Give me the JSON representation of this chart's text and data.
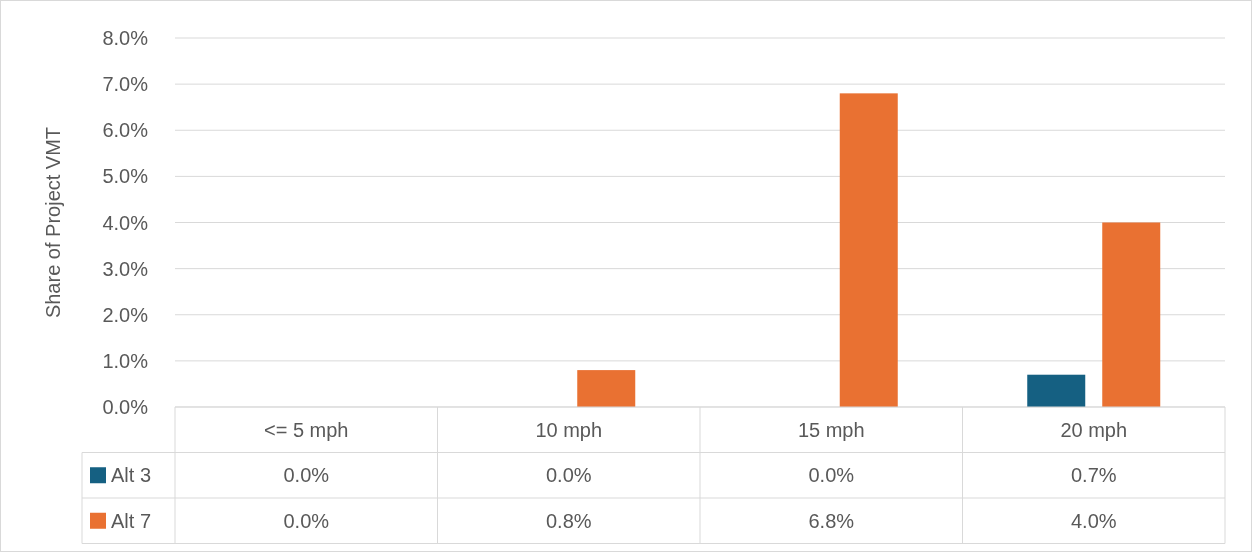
{
  "chart_data": {
    "type": "bar",
    "ylabel": "Share of Project VMT",
    "categories": [
      "<= 5 mph",
      "10 mph",
      "15 mph",
      "20 mph"
    ],
    "series": [
      {
        "name": "Alt 3",
        "color": "#156082",
        "values": [
          0.0,
          0.0,
          0.0,
          0.7
        ],
        "value_labels": [
          "0.0%",
          "0.0%",
          "0.0%",
          "0.7%"
        ]
      },
      {
        "name": "Alt 7",
        "color": "#e97132",
        "values": [
          0.0,
          0.8,
          6.8,
          4.0
        ],
        "value_labels": [
          "0.0%",
          "0.8%",
          "6.8%",
          "4.0%"
        ]
      }
    ],
    "ylim": [
      0,
      8
    ],
    "yticks": [
      {
        "value": 0,
        "label": "0.0%"
      },
      {
        "value": 1,
        "label": "1.0%"
      },
      {
        "value": 2,
        "label": "2.0%"
      },
      {
        "value": 3,
        "label": "3.0%"
      },
      {
        "value": 4,
        "label": "4.0%"
      },
      {
        "value": 5,
        "label": "5.0%"
      },
      {
        "value": 6,
        "label": "6.0%"
      },
      {
        "value": 7,
        "label": "7.0%"
      },
      {
        "value": 8,
        "label": "8.0%"
      }
    ],
    "grid": "y",
    "legend": "bottom"
  }
}
